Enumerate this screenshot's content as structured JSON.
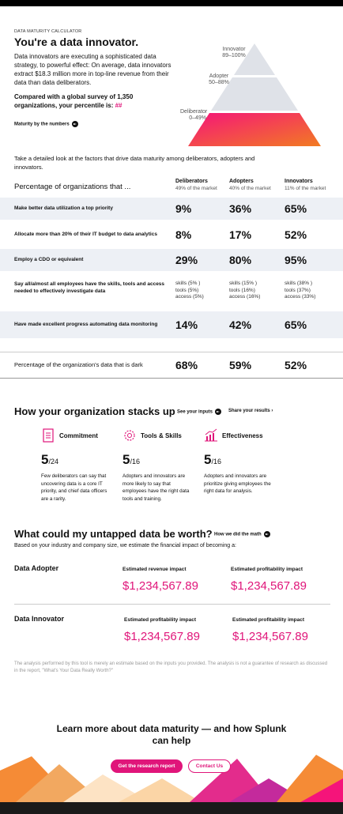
{
  "header": {
    "eyebrow": "DATA MATURITY CALCULATOR",
    "title": "You're a data innovator.",
    "body": "Data innovators are executing a sophisticated data strategy, to powerful effect: On average, data innovators extract $18.3 million more in top-line revenue from their data than data deliberators.",
    "survey": "Compared with a global survey of 1,350 organizations, your percentile is:",
    "percentile": "##",
    "link": "Maturity by the numbers"
  },
  "pyramid": [
    {
      "label": "Innovator",
      "range": "89–100%"
    },
    {
      "label": "Adopter",
      "range": "50–88%"
    },
    {
      "label": "Deliberator",
      "range": "0–49%"
    }
  ],
  "table": {
    "intro": "Take a detailed look at the factors that drive data maturity among deliberators, adopters and innovators.",
    "heading": "Percentage of organizations that ...",
    "columns": [
      {
        "name": "Deliberators",
        "share": "49% of the market"
      },
      {
        "name": "Adopters",
        "share": "40% of the market"
      },
      {
        "name": "Innovators",
        "share": "11% of the market"
      }
    ],
    "rows": [
      {
        "label": "Make better data utilization a top priority",
        "cells": [
          "9%",
          "36%",
          "65%"
        ]
      },
      {
        "label": "Allocate more than 20% of their IT budget to data analytics",
        "cells": [
          "8%",
          "17%",
          "52%"
        ]
      },
      {
        "label": "Employ a CDO or equivalent",
        "cells": [
          "29%",
          "80%",
          "95%"
        ]
      },
      {
        "label": "Say all/almost all employees have the skills, tools and access needed to effectively investigate data",
        "cells": [
          [
            "skills (5% )",
            "tools (5%)",
            "access (5%)"
          ],
          [
            "skills (15% )",
            "tools (16%)",
            "access (16%)"
          ],
          [
            "skills (38% )",
            "tools (37%)",
            "access (33%)"
          ]
        ]
      },
      {
        "label": "Have made excellent progress automating data monitoring",
        "cells": [
          "14%",
          "42%",
          "65%"
        ]
      },
      {
        "label": "Percentage of the organization's data that is dark",
        "cells": [
          "68%",
          "59%",
          "52%"
        ]
      }
    ]
  },
  "stacks": {
    "title": "How your organization stacks up",
    "inputs_link": "See your inputs",
    "share_link": "Share your results ›",
    "items": [
      {
        "label": "Commitment",
        "score": "5",
        "out_of": "/24",
        "text": "Few deliberators can say that uncovering data is a core IT priority, and chief data officers are a rarity."
      },
      {
        "label": "Tools & Skills",
        "score": "5",
        "out_of": "/16",
        "text": "Adopters and innovators are more likely to say that employees have the right data tools and training."
      },
      {
        "label": "Effectiveness",
        "score": "5",
        "out_of": "/16",
        "text": "Adopters and innovators are prioritize giving employees the right data for analysis."
      }
    ]
  },
  "worth": {
    "title": "What could my untapped data be worth?",
    "math_link": "How we did the math",
    "intro": "Based on your industry and company size, we estimate the financial impact of becoming a:",
    "blocks": [
      {
        "label": "Data Adopter",
        "impacts": [
          {
            "label": "Estimated revenue impact",
            "value": "$1,234,567.89"
          },
          {
            "label": "Estimated profitability impact",
            "value": "$1,234,567.89"
          }
        ]
      },
      {
        "label": "Data Innovator",
        "impacts": [
          {
            "label": "Estimated profitability impact",
            "value": "$1,234,567.89"
          },
          {
            "label": "Estimated profitability impact",
            "value": "$1,234,567.89"
          }
        ]
      }
    ],
    "disclaimer": "The analysis performed by this tool is merely an estimate based on the inputs you provided. The analysis is not a guarantee of research as discussed in the report, \"What's Your Data Really Worth?\""
  },
  "footer": {
    "title": "Learn more about data maturity — and how Splunk can help",
    "primary": "Get the research report",
    "secondary": "Contact Us"
  }
}
